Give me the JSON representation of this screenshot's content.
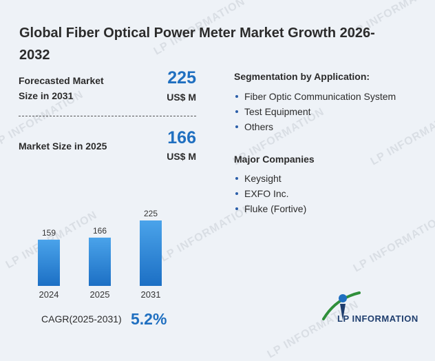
{
  "title": "Global Fiber Optical Power Meter Market Growth 2026-2032",
  "forecast": {
    "label": "Forecasted Market Size in 2031",
    "value": "225",
    "unit": "US$ M"
  },
  "current": {
    "label": "Market Size in 2025",
    "value": "166",
    "unit": "US$ M"
  },
  "segmentation": {
    "heading": "Segmentation by Application:",
    "items": [
      "Fiber Optic Communication System",
      "Test Equipment",
      "Others"
    ]
  },
  "companies": {
    "heading": "Major Companies",
    "items": [
      "Keysight",
      "EXFO Inc.",
      "Fluke (Fortive)"
    ]
  },
  "cagr": {
    "label": "CAGR(2025-2031)",
    "value": "5.2%"
  },
  "watermark": "LP INFORMATION",
  "logo": {
    "text": "LP INFORMATION",
    "icon": "lp-information-logo-icon"
  },
  "colors": {
    "bar_top": "#4aa3ea",
    "bar_bottom": "#1c6fc4",
    "accent": "#1f6fc0",
    "bullet": "#2b5ea8"
  },
  "chart_data": {
    "type": "bar",
    "categories": [
      "2024",
      "2025",
      "2031"
    ],
    "values": [
      159,
      166,
      225
    ],
    "title": "",
    "xlabel": "",
    "ylabel": "",
    "ylim": [
      0,
      225
    ]
  }
}
